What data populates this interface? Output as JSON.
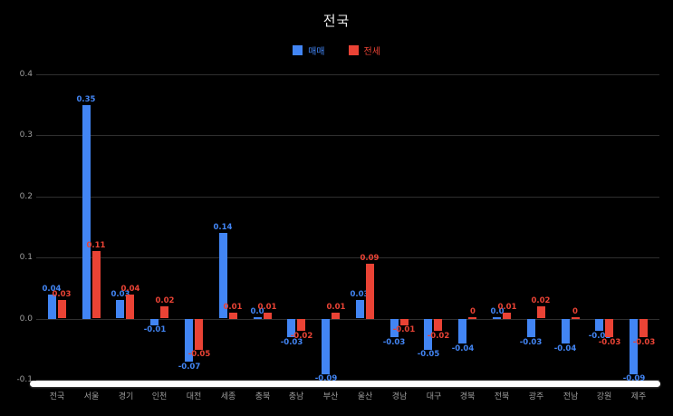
{
  "chart_data": {
    "type": "bar",
    "title": "전국",
    "categories": [
      "전국",
      "서울",
      "경기",
      "인천",
      "대전",
      "세종",
      "충북",
      "충남",
      "부산",
      "울산",
      "경남",
      "대구",
      "경북",
      "전북",
      "광주",
      "전남",
      "강원",
      "제주"
    ],
    "series": [
      {
        "name": "매매",
        "color": "#4285f4",
        "values": [
          0.04,
          0.35,
          0.03,
          -0.01,
          -0.07,
          0.14,
          0.0,
          -0.03,
          -0.09,
          0.03,
          -0.03,
          -0.05,
          -0.04,
          0.0,
          -0.03,
          -0.04,
          -0.02,
          -0.09
        ],
        "labels": [
          "0.04",
          "0.35",
          "0.03",
          "-0.01",
          "-0.07",
          "0.14",
          "0.0",
          "-0.03",
          "-0.09",
          "0.03",
          "-0.03",
          "-0.05",
          "-0.04",
          "0.0",
          "-0.03",
          "-0.04",
          "-0.02",
          "-0.09"
        ]
      },
      {
        "name": "전세",
        "color": "#ea4335",
        "values": [
          0.03,
          0.11,
          0.04,
          0.02,
          -0.05,
          0.01,
          0.01,
          -0.02,
          0.01,
          0.09,
          -0.01,
          -0.02,
          0,
          0.01,
          0.02,
          0,
          -0.03,
          -0.03
        ],
        "labels": [
          "0.03",
          "0.11",
          "0.04",
          "0.02",
          "-0.05",
          "0.01",
          "0.01",
          "-0.02",
          "0.01",
          "0.09",
          "-0.01",
          "-0.02",
          "0",
          "0.01",
          "0.02",
          "0",
          "-0.03",
          "-0.03"
        ]
      }
    ],
    "ylim": [
      -0.1,
      0.4
    ],
    "yticks": [
      "0.4",
      "0.3",
      "0.2",
      "0.1",
      "0.0",
      "-0.1"
    ],
    "grid": true,
    "legend_position": "top",
    "background": "#000000",
    "grid_color": "#2f2f2f",
    "tick_color": "#9e9e9e"
  }
}
